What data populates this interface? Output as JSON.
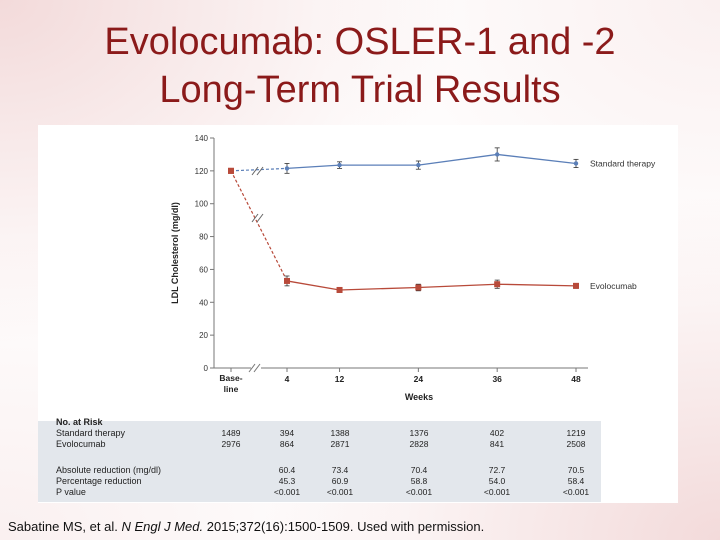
{
  "slide": {
    "title_line1": "Evolocumab: OSLER-1 and -2",
    "title_line2": "Long-Term Trial Results",
    "citation_authors": "Sabatine MS, et al.",
    "citation_journal": "N Engl J Med.",
    "citation_rest": "2015;372(16):1500-1509. Used with permission."
  },
  "chart_data": {
    "type": "line",
    "title": "",
    "xlabel": "Weeks",
    "ylabel": "LDL Cholesterol (mg/dl)",
    "ylim": [
      0,
      140
    ],
    "yticks": [
      0,
      20,
      40,
      60,
      80,
      100,
      120,
      140
    ],
    "categories": [
      "Base-line",
      "4",
      "12",
      "24",
      "36",
      "48"
    ],
    "x": [
      0,
      4,
      12,
      24,
      36,
      48
    ],
    "grid": false,
    "axis_break": true,
    "series": [
      {
        "name": "Standard therapy",
        "color": "#5b7fb8",
        "values": [
          120,
          121.5,
          123.5,
          123.5,
          130,
          124.5
        ],
        "errors": [
          0,
          3,
          2,
          2.5,
          4,
          2.5
        ]
      },
      {
        "name": "Evolocumab",
        "color": "#b84a3a",
        "values": [
          120,
          53,
          47.5,
          49,
          51,
          50
        ],
        "errors": [
          0,
          3,
          1.5,
          2,
          2.5,
          1.5
        ]
      }
    ],
    "table": {
      "header": "No. at Risk",
      "rows": [
        {
          "label": "Standard therapy",
          "values": [
            "1489",
            "394",
            "1388",
            "1376",
            "402",
            "1219"
          ]
        },
        {
          "label": "Evolocumab",
          "values": [
            "2976",
            "864",
            "2871",
            "2828",
            "841",
            "2508"
          ]
        },
        {
          "label": "Absolute reduction (mg/dl)",
          "values": [
            "",
            "60.4",
            "73.4",
            "70.4",
            "72.7",
            "70.5"
          ]
        },
        {
          "label": "Percentage reduction",
          "values": [
            "",
            "45.3",
            "60.9",
            "58.8",
            "54.0",
            "58.4"
          ]
        },
        {
          "label": "P value",
          "values": [
            "",
            "<0.001",
            "<0.001",
            "<0.001",
            "<0.001",
            "<0.001"
          ]
        }
      ]
    }
  }
}
